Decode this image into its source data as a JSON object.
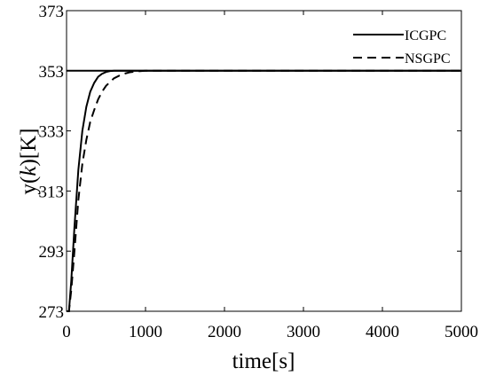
{
  "chart_data": {
    "type": "line",
    "xlabel": "time[s]",
    "ylabel_parts": [
      "y(",
      "k",
      ")[K]"
    ],
    "xlim": [
      0,
      5000
    ],
    "ylim": [
      273,
      373
    ],
    "xticks": [
      0,
      1000,
      2000,
      3000,
      4000,
      5000
    ],
    "yticks": [
      273,
      293,
      313,
      333,
      353,
      373
    ],
    "x_tick_labels": [
      "0",
      "1000",
      "2000",
      "3000",
      "4000",
      "5000"
    ],
    "y_tick_labels": [
      "273",
      "293",
      "313",
      "333",
      "353",
      "373"
    ],
    "grid": false,
    "legend_position": "top-right",
    "series": [
      {
        "name": "ICGPC",
        "style": "solid",
        "color": "#000000",
        "x": [
          0,
          30,
          60,
          100,
          150,
          200,
          250,
          300,
          350,
          400,
          450,
          500,
          550,
          600,
          700,
          800,
          1000,
          1500,
          2000,
          3000,
          4000,
          5000
        ],
        "y": [
          273,
          273,
          283,
          301,
          320,
          333,
          341,
          346,
          349,
          351,
          352,
          352.6,
          352.9,
          353,
          353,
          353,
          353,
          353,
          353,
          353,
          353,
          353
        ]
      },
      {
        "name": "NSGPC",
        "style": "dashed",
        "color": "#000000",
        "x": [
          0,
          30,
          60,
          100,
          150,
          200,
          250,
          300,
          350,
          400,
          450,
          500,
          600,
          700,
          800,
          900,
          1000,
          1100,
          1500,
          2000,
          3000,
          4000,
          5000
        ],
        "y": [
          273,
          273,
          280,
          293,
          310,
          322,
          330,
          336,
          340,
          343.5,
          346,
          348,
          350.5,
          351.8,
          352.5,
          352.8,
          353,
          353,
          353,
          353,
          353,
          353,
          353
        ]
      },
      {
        "name": "",
        "style": "solid",
        "color": "#000000",
        "x": [
          0,
          5000
        ],
        "y": [
          353,
          353
        ]
      }
    ]
  }
}
